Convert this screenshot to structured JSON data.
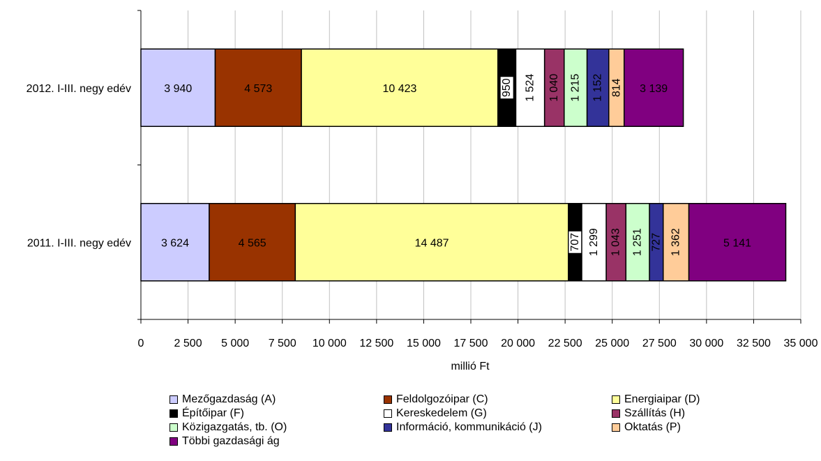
{
  "chart_data": {
    "type": "bar",
    "orientation": "horizontal",
    "stacked": true,
    "xlabel": "millió Ft",
    "xlim": [
      0,
      35000
    ],
    "x_tick_values": [
      0,
      2500,
      5000,
      7500,
      10000,
      12500,
      15000,
      17500,
      20000,
      22500,
      25000,
      27500,
      30000,
      32500,
      35000
    ],
    "x_tick_labels": [
      "0",
      "2 500",
      "5 000",
      "7 500",
      "10 000",
      "12 500",
      "15 000",
      "17 500",
      "20 000",
      "22 500",
      "25 000",
      "27 500",
      "30 000",
      "32 500",
      "35 000"
    ],
    "grid": true,
    "legend_position": "bottom",
    "categories": [
      "2012. I-III. negy edév",
      "2011. I-III. negy edév"
    ],
    "series": [
      {
        "name": "Mezőgazdaság (A)",
        "color": "#ccccff",
        "values": [
          3940,
          3624
        ],
        "labels": [
          "3 940",
          "3 624"
        ],
        "label_color": "#000000",
        "rotated": [
          false,
          false
        ]
      },
      {
        "name": "Feldolgozóipar (C)",
        "color": "#993300",
        "values": [
          4573,
          4565
        ],
        "labels": [
          "4 573",
          "4 565"
        ],
        "label_color": "#ffffff",
        "rotated": [
          false,
          false
        ]
      },
      {
        "name": "Energiaipar (D)",
        "color": "#ffff99",
        "values": [
          10423,
          14487
        ],
        "labels": [
          "10 423",
          "14 487"
        ],
        "label_color": "#000000",
        "rotated": [
          false,
          false
        ]
      },
      {
        "name": "Építőipar (F)",
        "color": "#000000",
        "values": [
          950,
          707
        ],
        "labels": [
          "950",
          "707"
        ],
        "label_color": "#000000",
        "label_bg": "#ffffff",
        "rotated": [
          true,
          true
        ]
      },
      {
        "name": "Kereskedelem (G)",
        "color": "#ffffff",
        "values": [
          1524,
          1299
        ],
        "labels": [
          "1 524",
          "1 299"
        ],
        "label_color": "#000000",
        "rotated": [
          true,
          true
        ]
      },
      {
        "name": "Szállítás (H)",
        "color": "#993366",
        "values": [
          1040,
          1043
        ],
        "labels": [
          "1 040",
          "1 043"
        ],
        "label_color": "#ffffff",
        "rotated": [
          true,
          true
        ]
      },
      {
        "name": "Közigazgatás, tb. (O)",
        "color": "#ccffcc",
        "values": [
          1215,
          1251
        ],
        "labels": [
          "1 215",
          "1 251"
        ],
        "label_color": "#000000",
        "rotated": [
          true,
          true
        ]
      },
      {
        "name": "Információ, kommunikáció (J)",
        "color": "#333399",
        "values": [
          1152,
          727
        ],
        "labels": [
          "1 152",
          "727"
        ],
        "label_color": "#ffffff",
        "rotated": [
          true,
          true
        ]
      },
      {
        "name": "Oktatás (P)",
        "color": "#ffcc99",
        "values": [
          814,
          1362
        ],
        "labels": [
          "814",
          "1 362"
        ],
        "label_color": "#000000",
        "rotated": [
          true,
          true
        ]
      },
      {
        "name": "Többi gazdasági ág",
        "color": "#800080",
        "values": [
          3139,
          5141
        ],
        "labels": [
          "3 139",
          "5 141"
        ],
        "label_color": "#ffffff",
        "rotated": [
          false,
          false
        ]
      }
    ]
  }
}
